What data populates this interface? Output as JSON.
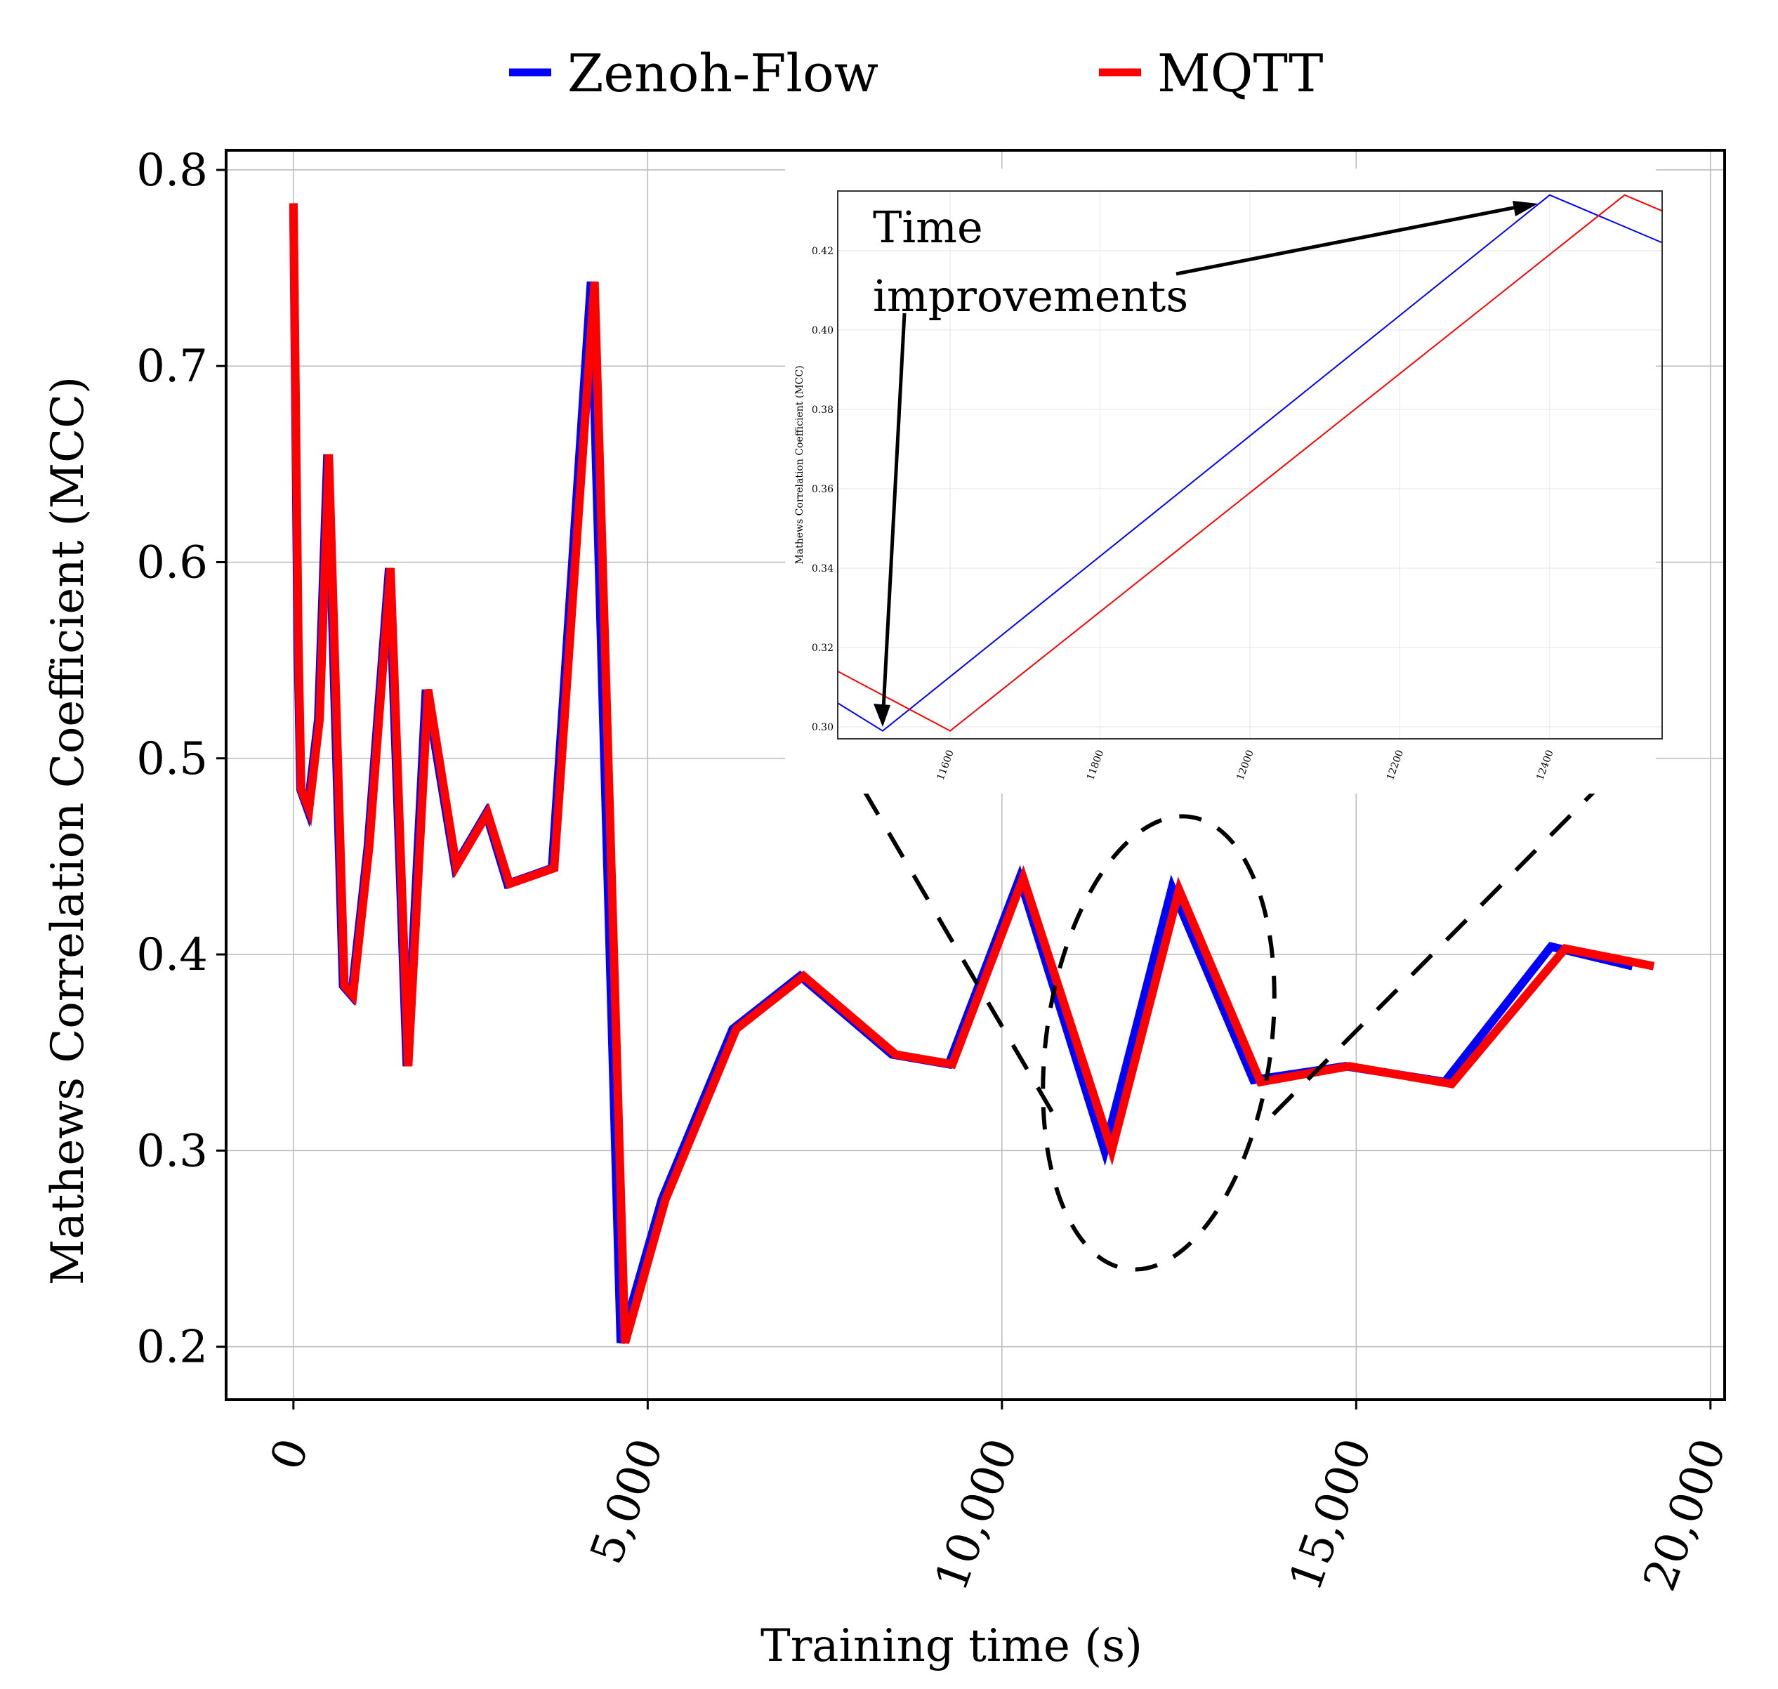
{
  "legend": {
    "items": [
      {
        "label": "Zenoh-Flow",
        "color": "#0000ff"
      },
      {
        "label": "MQTT",
        "color": "#ff0000"
      }
    ]
  },
  "chart_data": [
    {
      "type": "line",
      "xlabel": "Training time (s)",
      "ylabel": "Mathews Correlation Coefficient (MCC)",
      "xlim": [
        -950,
        20200
      ],
      "ylim": [
        0.173,
        0.81
      ],
      "x_ticks": [
        0,
        5000,
        10000,
        15000,
        20000
      ],
      "x_tick_labels": [
        "0",
        "5,000",
        "10,000",
        "15,000",
        "20,000"
      ],
      "y_ticks": [
        0.2,
        0.3,
        0.4,
        0.5,
        0.6,
        0.7,
        0.8
      ],
      "y_tick_labels": [
        "0.2",
        "0.3",
        "0.4",
        "0.5",
        "0.6",
        "0.7",
        "0.8"
      ],
      "grid": true,
      "legend_position": "top-center",
      "series": [
        {
          "name": "Zenoh-Flow",
          "color": "#0000ff",
          "x": [
            0,
            60,
            100,
            200,
            350,
            480,
            700,
            820,
            1050,
            1350,
            1600,
            1870,
            2280,
            2720,
            3020,
            3650,
            4200,
            4620,
            5200,
            6200,
            7150,
            8450,
            9250,
            10250,
            11450,
            12400,
            13550,
            14850,
            16250,
            17750,
            18900
          ],
          "y": [
            0.783,
            0.56,
            0.484,
            0.474,
            0.52,
            0.655,
            0.384,
            0.379,
            0.455,
            0.597,
            0.343,
            0.535,
            0.445,
            0.472,
            0.436,
            0.444,
            0.743,
            0.202,
            0.275,
            0.362,
            0.389,
            0.349,
            0.344,
            0.439,
            0.3,
            0.434,
            0.336,
            0.343,
            0.335,
            0.404,
            0.394
          ]
        },
        {
          "name": "MQTT",
          "color": "#ff0000",
          "x": [
            0,
            70,
            110,
            220,
            370,
            500,
            720,
            840,
            1070,
            1370,
            1620,
            1900,
            2300,
            2740,
            3050,
            3680,
            4250,
            4680,
            5250,
            6250,
            7200,
            8500,
            9300,
            10300,
            11550,
            12500,
            13650,
            14900,
            16350,
            17950,
            19200
          ],
          "y": [
            0.783,
            0.56,
            0.484,
            0.474,
            0.52,
            0.655,
            0.384,
            0.379,
            0.455,
            0.597,
            0.343,
            0.535,
            0.445,
            0.472,
            0.436,
            0.444,
            0.743,
            0.202,
            0.275,
            0.362,
            0.389,
            0.349,
            0.344,
            0.439,
            0.3,
            0.433,
            0.335,
            0.343,
            0.334,
            0.403,
            0.394
          ]
        }
      ]
    },
    {
      "type": "line",
      "role": "zoom-inset",
      "xlabel": "",
      "ylabel": "Mathews Correlation Coefficient (MCC)",
      "xlim": [
        11450,
        12550
      ],
      "ylim": [
        0.297,
        0.435
      ],
      "x_ticks": [
        11600,
        11800,
        12000,
        12200,
        12400
      ],
      "x_tick_labels": [
        "11600",
        "11800",
        "12000",
        "12200",
        "12400"
      ],
      "y_ticks": [
        0.3,
        0.32,
        0.34,
        0.36,
        0.38,
        0.4,
        0.42
      ],
      "y_tick_labels": [
        "0.30",
        "0.32",
        "0.34",
        "0.36",
        "0.38",
        "0.40",
        "0.42"
      ],
      "grid": true,
      "series": [
        {
          "name": "Zenoh-Flow",
          "color": "#0000ff",
          "x": [
            11450,
            11510,
            12400,
            12550
          ],
          "y": [
            0.306,
            0.299,
            0.434,
            0.422
          ]
        },
        {
          "name": "MQTT",
          "color": "#ff0000",
          "x": [
            11450,
            11600,
            12500,
            12550
          ],
          "y": [
            0.314,
            0.299,
            0.434,
            0.43
          ]
        }
      ]
    }
  ],
  "annotation": {
    "line1": "Time",
    "line2": "improvements"
  }
}
